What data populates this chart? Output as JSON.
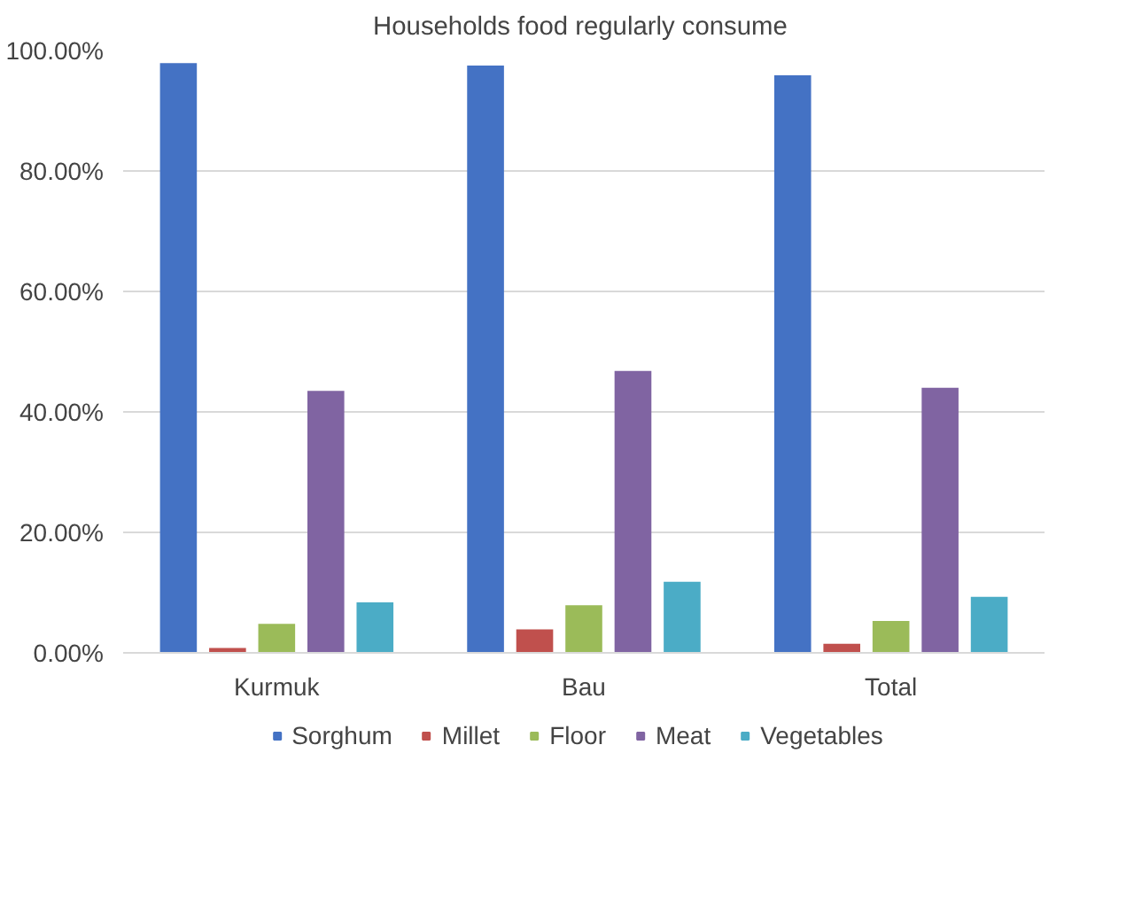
{
  "chart_data": {
    "type": "bar",
    "title": "Households  food regularly consume",
    "categories": [
      "Kurmuk",
      "Bau",
      "Total"
    ],
    "series": [
      {
        "name": "Sorghum",
        "color": "#4472c4",
        "values": [
          97.9,
          97.5,
          95.9
        ]
      },
      {
        "name": "Millet",
        "color": "#c0504d",
        "values": [
          0.8,
          3.9,
          1.5
        ]
      },
      {
        "name": "Floor",
        "color": "#9bbb59",
        "values": [
          4.8,
          7.9,
          5.3
        ]
      },
      {
        "name": "Meat",
        "color": "#8064a2",
        "values": [
          43.5,
          46.8,
          44.0
        ]
      },
      {
        "name": "Vegetables",
        "color": "#4bacc6",
        "values": [
          8.4,
          11.8,
          9.3
        ]
      }
    ],
    "ylim": [
      0,
      100
    ],
    "yticks": [
      {
        "value": 0,
        "label": "0.00%"
      },
      {
        "value": 20,
        "label": "20.00%"
      },
      {
        "value": 40,
        "label": "40.00%"
      },
      {
        "value": 60,
        "label": "60.00%"
      },
      {
        "value": 80,
        "label": "80.00%"
      },
      {
        "value": 100,
        "label": "100.00%"
      }
    ],
    "grid": "y",
    "legend": "bottom"
  }
}
